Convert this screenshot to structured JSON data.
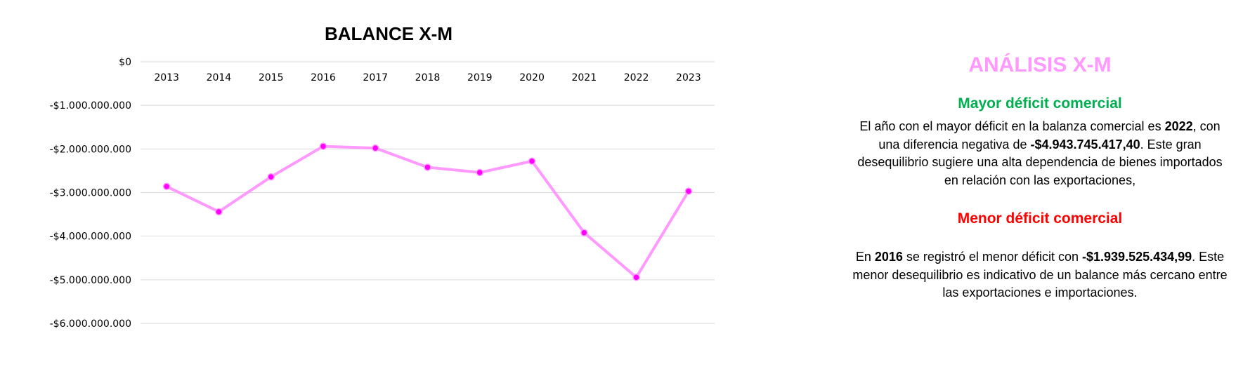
{
  "chart_data": {
    "type": "line",
    "title": "BALANCE X-M",
    "categories": [
      "2013",
      "2014",
      "2015",
      "2016",
      "2017",
      "2018",
      "2019",
      "2020",
      "2021",
      "2022",
      "2023"
    ],
    "series": [
      {
        "values": [
          -2860000000,
          -3440000000,
          -2640000000,
          -1939525434.99,
          -1980000000,
          -2420000000,
          -2540000000,
          -2280000000,
          -3920000000,
          -4943745417.4,
          -2970000000
        ],
        "color": "#ff99ff",
        "marker_color": "#ff00ff"
      }
    ],
    "yticks": [
      "$0",
      "-$1.000.000.000",
      "-$2.000.000.000",
      "-$3.000.000.000",
      "-$4.000.000.000",
      "-$5.000.000.000",
      "-$6.000.000.000"
    ],
    "ylim": [
      -6000000000,
      0
    ],
    "grid": true
  },
  "panel": {
    "title": "ANÁLISIS X-M",
    "mayor": {
      "heading": "Mayor déficit comercial",
      "t1": "El año con el mayor déficit en la balanza comercial es ",
      "year": "2022",
      "t2": ", con una diferencia negativa de ",
      "amount": "-$4.943.745.417,40",
      "t3": ". Este gran desequilibrio sugiere una alta dependencia de bienes importados en relación con las exportaciones,"
    },
    "menor": {
      "heading": "Menor déficit comercial",
      "t1": "En ",
      "year": "2016",
      "t2": " se registró el menor déficit con  ",
      "amount": "-$1.939.525.434,99",
      "t3": ". Este menor desequilibrio es indicativo de un balance más cercano entre las exportaciones e importaciones."
    }
  }
}
